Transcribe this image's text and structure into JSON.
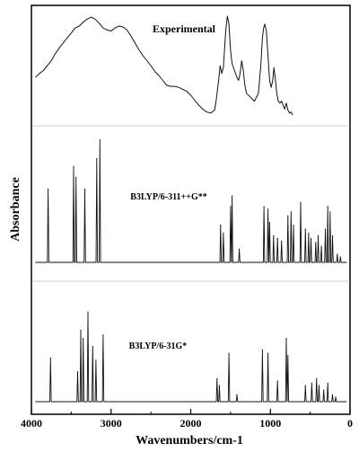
{
  "chart_data": {
    "type": "line",
    "xlabel": "Wavenumbers/cm-1",
    "ylabel": "Absorbance",
    "x_ticks": [
      4000,
      3000,
      2000,
      1000,
      0
    ],
    "xlim": [
      4000,
      0
    ],
    "x_reversed": true,
    "ylim": [
      0,
      1
    ],
    "series": [
      {
        "name": "Experimental",
        "kind": "broad",
        "points": [
          [
            3950,
            0.38
          ],
          [
            3900,
            0.42
          ],
          [
            3850,
            0.45
          ],
          [
            3800,
            0.5
          ],
          [
            3750,
            0.55
          ],
          [
            3700,
            0.62
          ],
          [
            3650,
            0.68
          ],
          [
            3600,
            0.73
          ],
          [
            3550,
            0.78
          ],
          [
            3500,
            0.83
          ],
          [
            3450,
            0.88
          ],
          [
            3400,
            0.9
          ],
          [
            3350,
            0.94
          ],
          [
            3300,
            0.97
          ],
          [
            3250,
            0.99
          ],
          [
            3200,
            0.97
          ],
          [
            3150,
            0.93
          ],
          [
            3100,
            0.88
          ],
          [
            3050,
            0.86
          ],
          [
            3000,
            0.85
          ],
          [
            2950,
            0.88
          ],
          [
            2900,
            0.9
          ],
          [
            2850,
            0.89
          ],
          [
            2800,
            0.86
          ],
          [
            2750,
            0.8
          ],
          [
            2700,
            0.73
          ],
          [
            2650,
            0.66
          ],
          [
            2600,
            0.6
          ],
          [
            2550,
            0.55
          ],
          [
            2500,
            0.5
          ],
          [
            2450,
            0.44
          ],
          [
            2400,
            0.4
          ],
          [
            2350,
            0.35
          ],
          [
            2300,
            0.3
          ],
          [
            2250,
            0.29
          ],
          [
            2200,
            0.29
          ],
          [
            2150,
            0.28
          ],
          [
            2100,
            0.26
          ],
          [
            2050,
            0.24
          ],
          [
            2000,
            0.2
          ],
          [
            1950,
            0.15
          ],
          [
            1900,
            0.1
          ],
          [
            1850,
            0.06
          ],
          [
            1800,
            0.03
          ],
          [
            1750,
            0.02
          ],
          [
            1700,
            0.05
          ],
          [
            1680,
            0.15
          ],
          [
            1650,
            0.35
          ],
          [
            1630,
            0.5
          ],
          [
            1610,
            0.42
          ],
          [
            1590,
            0.48
          ],
          [
            1560,
            0.85
          ],
          [
            1540,
            1.0
          ],
          [
            1520,
            0.92
          ],
          [
            1500,
            0.65
          ],
          [
            1480,
            0.52
          ],
          [
            1450,
            0.45
          ],
          [
            1420,
            0.38
          ],
          [
            1400,
            0.35
          ],
          [
            1380,
            0.42
          ],
          [
            1360,
            0.55
          ],
          [
            1340,
            0.45
          ],
          [
            1320,
            0.3
          ],
          [
            1300,
            0.22
          ],
          [
            1250,
            0.18
          ],
          [
            1200,
            0.14
          ],
          [
            1150,
            0.22
          ],
          [
            1120,
            0.5
          ],
          [
            1100,
            0.78
          ],
          [
            1085,
            0.88
          ],
          [
            1070,
            0.92
          ],
          [
            1050,
            0.85
          ],
          [
            1030,
            0.6
          ],
          [
            1010,
            0.35
          ],
          [
            990,
            0.28
          ],
          [
            970,
            0.35
          ],
          [
            955,
            0.48
          ],
          [
            940,
            0.38
          ],
          [
            920,
            0.22
          ],
          [
            900,
            0.14
          ],
          [
            880,
            0.12
          ],
          [
            860,
            0.14
          ],
          [
            840,
            0.1
          ],
          [
            820,
            0.06
          ],
          [
            800,
            0.12
          ],
          [
            780,
            0.05
          ],
          [
            760,
            0.02
          ],
          [
            740,
            0.03
          ],
          [
            720,
            0.0
          ]
        ]
      },
      {
        "name": "B3LYP/6-311++G**",
        "kind": "sticks",
        "peaks": [
          [
            3790,
            0.55
          ],
          [
            3470,
            0.72
          ],
          [
            3440,
            0.64
          ],
          [
            3330,
            0.55
          ],
          [
            3180,
            0.78
          ],
          [
            3140,
            0.92
          ],
          [
            1625,
            0.28
          ],
          [
            1590,
            0.22
          ],
          [
            1500,
            0.42
          ],
          [
            1480,
            0.5
          ],
          [
            1390,
            0.1
          ],
          [
            1080,
            0.42
          ],
          [
            1030,
            0.4
          ],
          [
            1010,
            0.3
          ],
          [
            960,
            0.2
          ],
          [
            910,
            0.18
          ],
          [
            860,
            0.16
          ],
          [
            780,
            0.35
          ],
          [
            740,
            0.38
          ],
          [
            710,
            0.28
          ],
          [
            620,
            0.45
          ],
          [
            560,
            0.25
          ],
          [
            520,
            0.22
          ],
          [
            490,
            0.18
          ],
          [
            430,
            0.15
          ],
          [
            400,
            0.2
          ],
          [
            360,
            0.12
          ],
          [
            310,
            0.25
          ],
          [
            280,
            0.42
          ],
          [
            250,
            0.38
          ],
          [
            220,
            0.2
          ],
          [
            160,
            0.06
          ],
          [
            120,
            0.04
          ]
        ]
      },
      {
        "name": "B3LYP/6-31G*",
        "kind": "sticks",
        "peaks": [
          [
            3760,
            0.38
          ],
          [
            3420,
            0.26
          ],
          [
            3380,
            0.62
          ],
          [
            3350,
            0.55
          ],
          [
            3290,
            0.78
          ],
          [
            3230,
            0.48
          ],
          [
            3190,
            0.36
          ],
          [
            3100,
            0.58
          ],
          [
            1670,
            0.2
          ],
          [
            1640,
            0.14
          ],
          [
            1520,
            0.42
          ],
          [
            1420,
            0.06
          ],
          [
            1100,
            0.45
          ],
          [
            1030,
            0.42
          ],
          [
            910,
            0.18
          ],
          [
            800,
            0.55
          ],
          [
            780,
            0.4
          ],
          [
            560,
            0.14
          ],
          [
            480,
            0.16
          ],
          [
            420,
            0.2
          ],
          [
            390,
            0.14
          ],
          [
            330,
            0.1
          ],
          [
            280,
            0.16
          ],
          [
            220,
            0.06
          ],
          [
            180,
            0.04
          ]
        ]
      }
    ]
  }
}
